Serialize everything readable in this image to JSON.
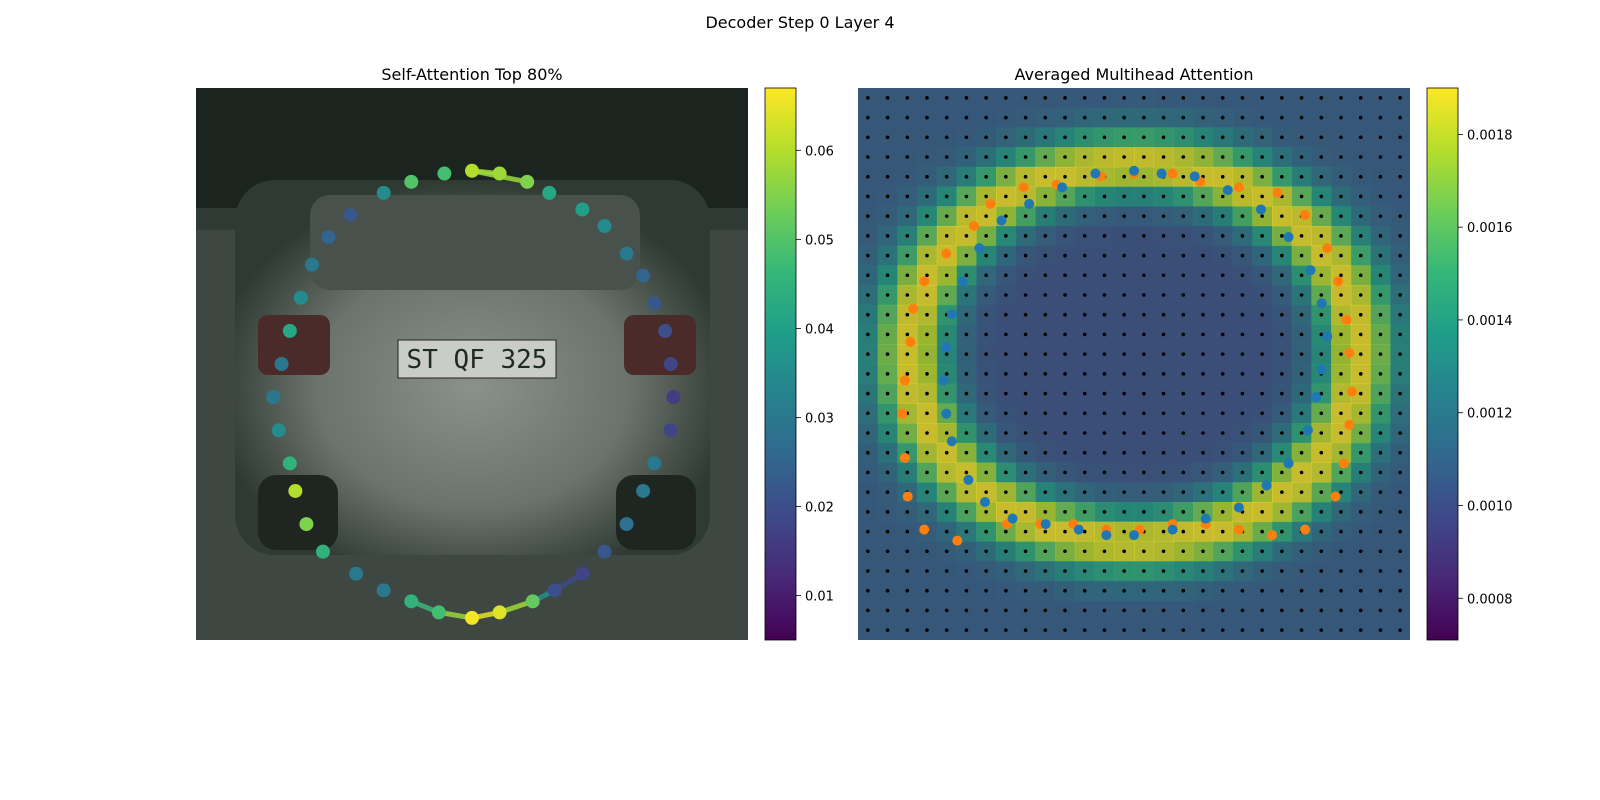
{
  "figure": {
    "title": "Decoder Step 0 Layer 4"
  },
  "panels": {
    "left": {
      "title": "Self-Attention Top 80%"
    },
    "right": {
      "title": "Averaged Multihead Attention"
    }
  },
  "colors": {
    "viridis": [
      "#440154",
      "#482878",
      "#3e4989",
      "#31688e",
      "#26828e",
      "#1f9e89",
      "#35b779",
      "#6ece58",
      "#b5de2b",
      "#fde725"
    ],
    "pred_points": "#1f77b4",
    "gt_points": "#ff7f0e",
    "grid_dots": "#000000",
    "photo_bg": "#3f4a43"
  },
  "chart_data": [
    {
      "type": "scatter",
      "title": "Self-Attention Top 80%",
      "description_of_background": "street photo of silver car rear",
      "colorbar": {
        "min": 0.005,
        "max": 0.067,
        "ticks": [
          0.01,
          0.02,
          0.03,
          0.04,
          0.05,
          0.06
        ],
        "tick_labels": [
          "0.01",
          "0.02",
          "0.03",
          "0.04",
          "0.05",
          "0.06"
        ]
      },
      "points": [
        [
          0.5,
          0.15,
          0.06
        ],
        [
          0.55,
          0.155,
          0.058
        ],
        [
          0.6,
          0.17,
          0.055
        ],
        [
          0.64,
          0.19,
          0.042
        ],
        [
          0.7,
          0.22,
          0.04
        ],
        [
          0.74,
          0.25,
          0.035
        ],
        [
          0.78,
          0.3,
          0.03
        ],
        [
          0.81,
          0.34,
          0.025
        ],
        [
          0.83,
          0.39,
          0.022
        ],
        [
          0.85,
          0.44,
          0.02
        ],
        [
          0.86,
          0.5,
          0.018
        ],
        [
          0.865,
          0.56,
          0.016
        ],
        [
          0.86,
          0.62,
          0.018
        ],
        [
          0.83,
          0.68,
          0.03
        ],
        [
          0.81,
          0.73,
          0.03
        ],
        [
          0.78,
          0.79,
          0.028
        ],
        [
          0.74,
          0.84,
          0.022
        ],
        [
          0.7,
          0.88,
          0.018
        ],
        [
          0.65,
          0.91,
          0.02
        ],
        [
          0.61,
          0.93,
          0.052
        ],
        [
          0.55,
          0.95,
          0.064
        ],
        [
          0.5,
          0.96,
          0.066
        ],
        [
          0.44,
          0.95,
          0.048
        ],
        [
          0.39,
          0.93,
          0.045
        ],
        [
          0.34,
          0.91,
          0.03
        ],
        [
          0.29,
          0.88,
          0.03
        ],
        [
          0.23,
          0.84,
          0.045
        ],
        [
          0.2,
          0.79,
          0.055
        ],
        [
          0.18,
          0.73,
          0.06
        ],
        [
          0.17,
          0.68,
          0.045
        ],
        [
          0.15,
          0.62,
          0.035
        ],
        [
          0.14,
          0.56,
          0.03
        ],
        [
          0.155,
          0.5,
          0.03
        ],
        [
          0.17,
          0.44,
          0.042
        ],
        [
          0.19,
          0.38,
          0.035
        ],
        [
          0.21,
          0.32,
          0.03
        ],
        [
          0.24,
          0.27,
          0.025
        ],
        [
          0.28,
          0.23,
          0.022
        ],
        [
          0.34,
          0.19,
          0.035
        ],
        [
          0.39,
          0.17,
          0.05
        ],
        [
          0.45,
          0.155,
          0.048
        ]
      ],
      "highlight_edges": [
        [
          0,
          1
        ],
        [
          0,
          2
        ],
        [
          20,
          21
        ],
        [
          19,
          20
        ],
        [
          18,
          19
        ],
        [
          17,
          18
        ],
        [
          21,
          22
        ],
        [
          22,
          23
        ]
      ]
    },
    {
      "type": "heatmap",
      "title": "Averaged Multihead Attention",
      "colorbar": {
        "min": 0.00071,
        "max": 0.0019,
        "ticks": [
          0.0008,
          0.001,
          0.0012,
          0.0014,
          0.0016,
          0.0018
        ],
        "tick_labels": [
          "0.0008",
          "0.0010",
          "0.0012",
          "0.0014",
          "0.0016",
          "0.0018"
        ]
      },
      "grid": {
        "rows": 28,
        "cols": 28
      },
      "predicted_points": [
        [
          0.43,
          0.155
        ],
        [
          0.5,
          0.15
        ],
        [
          0.55,
          0.155
        ],
        [
          0.61,
          0.16
        ],
        [
          0.67,
          0.185
        ],
        [
          0.73,
          0.22
        ],
        [
          0.78,
          0.27
        ],
        [
          0.82,
          0.33
        ],
        [
          0.84,
          0.39
        ],
        [
          0.85,
          0.45
        ],
        [
          0.84,
          0.51
        ],
        [
          0.83,
          0.56
        ],
        [
          0.815,
          0.62
        ],
        [
          0.78,
          0.68
        ],
        [
          0.74,
          0.72
        ],
        [
          0.69,
          0.76
        ],
        [
          0.63,
          0.78
        ],
        [
          0.57,
          0.8
        ],
        [
          0.5,
          0.81
        ],
        [
          0.45,
          0.81
        ],
        [
          0.4,
          0.8
        ],
        [
          0.34,
          0.79
        ],
        [
          0.28,
          0.78
        ],
        [
          0.23,
          0.75
        ],
        [
          0.2,
          0.71
        ],
        [
          0.17,
          0.64
        ],
        [
          0.16,
          0.59
        ],
        [
          0.155,
          0.53
        ],
        [
          0.16,
          0.47
        ],
        [
          0.17,
          0.41
        ],
        [
          0.19,
          0.35
        ],
        [
          0.22,
          0.29
        ],
        [
          0.26,
          0.24
        ],
        [
          0.31,
          0.21
        ],
        [
          0.37,
          0.18
        ]
      ],
      "ground_truth_points": [
        [
          0.44,
          0.16
        ],
        [
          0.5,
          0.155
        ],
        [
          0.57,
          0.155
        ],
        [
          0.62,
          0.17
        ],
        [
          0.69,
          0.18
        ],
        [
          0.76,
          0.19
        ],
        [
          0.81,
          0.23
        ],
        [
          0.85,
          0.29
        ],
        [
          0.87,
          0.35
        ],
        [
          0.885,
          0.42
        ],
        [
          0.89,
          0.48
        ],
        [
          0.895,
          0.55
        ],
        [
          0.89,
          0.61
        ],
        [
          0.88,
          0.68
        ],
        [
          0.865,
          0.74
        ],
        [
          0.81,
          0.8
        ],
        [
          0.75,
          0.81
        ],
        [
          0.69,
          0.8
        ],
        [
          0.63,
          0.79
        ],
        [
          0.57,
          0.79
        ],
        [
          0.51,
          0.8
        ],
        [
          0.45,
          0.8
        ],
        [
          0.39,
          0.79
        ],
        [
          0.33,
          0.79
        ],
        [
          0.27,
          0.79
        ],
        [
          0.18,
          0.82
        ],
        [
          0.12,
          0.8
        ],
        [
          0.09,
          0.74
        ],
        [
          0.085,
          0.67
        ],
        [
          0.08,
          0.59
        ],
        [
          0.085,
          0.53
        ],
        [
          0.095,
          0.46
        ],
        [
          0.1,
          0.4
        ],
        [
          0.12,
          0.35
        ],
        [
          0.16,
          0.3
        ],
        [
          0.21,
          0.25
        ],
        [
          0.24,
          0.21
        ],
        [
          0.3,
          0.18
        ],
        [
          0.36,
          0.175
        ]
      ]
    }
  ]
}
